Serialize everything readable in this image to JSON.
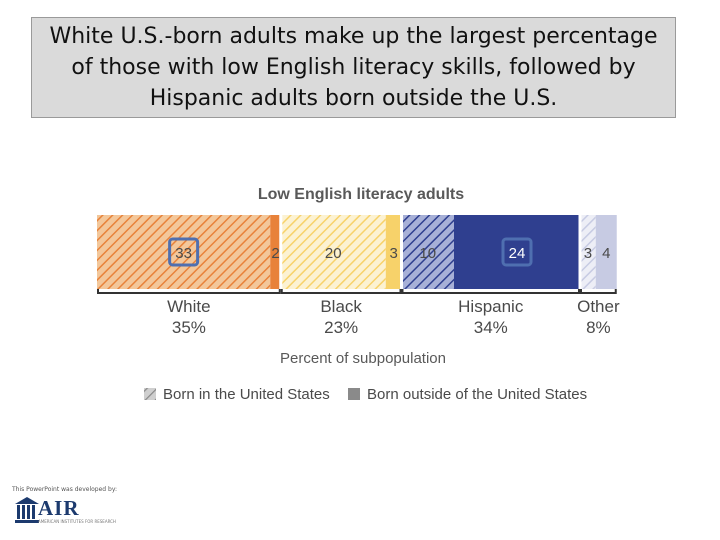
{
  "title": "White U.S.-born adults make up the largest percentage of those with low English literacy skills, followed by Hispanic adults born outside the U.S.",
  "chart_data": {
    "type": "bar",
    "orientation": "horizontal-stacked-100",
    "title": "Low English literacy adults",
    "xlabel": "Percent of subpopulation",
    "total": 100,
    "groups": [
      {
        "name": "White",
        "total_label": "35%",
        "segments": [
          {
            "category": "Born in the United States",
            "value": 33,
            "label": "33",
            "highlight": true
          },
          {
            "category": "Born outside of the United States",
            "value": 2,
            "label": "2",
            "highlight": false
          }
        ]
      },
      {
        "name": "Black",
        "total_label": "23%",
        "segments": [
          {
            "category": "Born in the United States",
            "value": 20,
            "label": "20",
            "highlight": false
          },
          {
            "category": "Born outside of the United States",
            "value": 3,
            "label": "3",
            "highlight": false
          }
        ]
      },
      {
        "name": "Hispanic",
        "total_label": "34%",
        "segments": [
          {
            "category": "Born in the United States",
            "value": 10,
            "label": "10",
            "highlight": false
          },
          {
            "category": "Born outside of the United States",
            "value": 24,
            "label": "24",
            "highlight": true
          }
        ]
      },
      {
        "name": "Other",
        "total_label": "8%",
        "segments": [
          {
            "category": "Born in the United States",
            "value": 3,
            "label": "3",
            "highlight": false
          },
          {
            "category": "Born outside of the United States",
            "value": 4,
            "label": "4",
            "highlight": false
          }
        ]
      }
    ],
    "legend": [
      {
        "label": "Born in the United States",
        "style": "hatched"
      },
      {
        "label": "Born outside of the United States",
        "style": "solid"
      }
    ],
    "colors": {
      "White": {
        "solid": "#e8823a",
        "light": "#f3c79a"
      },
      "Black": {
        "solid": "#f7d26a",
        "light": "#fcf2d2"
      },
      "Hispanic": {
        "solid": "#2f3f8f",
        "light": "#a7b0d7"
      },
      "Other": {
        "solid": "#c7cbe3",
        "light": "#edeef6"
      },
      "highlight_border": "#4f6fb0",
      "legend": "#8a8a8a"
    }
  },
  "footer": {
    "credit": "This PowerPoint was developed by:",
    "logo_text": "AIR",
    "logo_sub": "AMERICAN INSTITUTES FOR RESEARCH"
  }
}
